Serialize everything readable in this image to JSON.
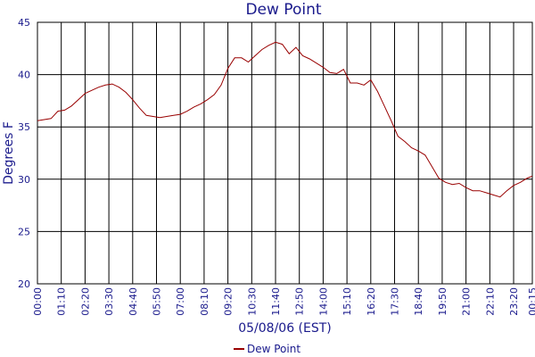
{
  "chart_data": {
    "type": "line",
    "title": "Dew Point",
    "xlabel": "05/08/06 (EST)",
    "ylabel": "Degrees F",
    "ylim": [
      20,
      45
    ],
    "yticks": [
      20,
      25,
      30,
      35,
      40,
      45
    ],
    "xlim": [
      "00:00",
      "24:15"
    ],
    "xticks": [
      "00:00",
      "01:10",
      "02:20",
      "03:30",
      "04:40",
      "05:50",
      "07:00",
      "08:10",
      "09:20",
      "10:30",
      "11:40",
      "12:50",
      "14:00",
      "15:10",
      "16:20",
      "17:30",
      "18:40",
      "19:50",
      "21:00",
      "22:10",
      "23:20",
      "00:15"
    ],
    "grid": true,
    "legend": "bottom-center",
    "series": [
      {
        "name": "Dew Point",
        "color": "#990000",
        "points": [
          [
            "00:00",
            35.6
          ],
          [
            "00:20",
            35.7
          ],
          [
            "00:40",
            35.8
          ],
          [
            "01:00",
            36.5
          ],
          [
            "01:20",
            36.6
          ],
          [
            "01:40",
            37.0
          ],
          [
            "02:00",
            37.6
          ],
          [
            "02:20",
            38.2
          ],
          [
            "02:40",
            38.5
          ],
          [
            "03:00",
            38.8
          ],
          [
            "03:20",
            39.0
          ],
          [
            "03:40",
            39.1
          ],
          [
            "04:00",
            38.8
          ],
          [
            "04:20",
            38.3
          ],
          [
            "04:40",
            37.6
          ],
          [
            "05:00",
            36.8
          ],
          [
            "05:20",
            36.1
          ],
          [
            "05:40",
            36.0
          ],
          [
            "06:00",
            35.9
          ],
          [
            "06:20",
            36.0
          ],
          [
            "06:40",
            36.1
          ],
          [
            "07:00",
            36.2
          ],
          [
            "07:20",
            36.5
          ],
          [
            "07:40",
            36.9
          ],
          [
            "08:00",
            37.2
          ],
          [
            "08:20",
            37.6
          ],
          [
            "08:40",
            38.1
          ],
          [
            "09:00",
            39.0
          ],
          [
            "09:20",
            40.6
          ],
          [
            "09:40",
            41.6
          ],
          [
            "10:00",
            41.6
          ],
          [
            "10:20",
            41.2
          ],
          [
            "10:40",
            41.8
          ],
          [
            "11:00",
            42.4
          ],
          [
            "11:20",
            42.8
          ],
          [
            "11:40",
            43.1
          ],
          [
            "12:00",
            42.9
          ],
          [
            "12:20",
            42.0
          ],
          [
            "12:40",
            42.6
          ],
          [
            "13:00",
            41.8
          ],
          [
            "13:20",
            41.5
          ],
          [
            "13:40",
            41.1
          ],
          [
            "14:00",
            40.7
          ],
          [
            "14:20",
            40.2
          ],
          [
            "14:40",
            40.1
          ],
          [
            "15:00",
            40.5
          ],
          [
            "15:20",
            39.2
          ],
          [
            "15:40",
            39.2
          ],
          [
            "16:00",
            39.0
          ],
          [
            "16:20",
            39.5
          ],
          [
            "16:40",
            38.4
          ],
          [
            "17:00",
            37.0
          ],
          [
            "17:20",
            35.6
          ],
          [
            "17:40",
            34.1
          ],
          [
            "18:00",
            33.6
          ],
          [
            "18:20",
            33.0
          ],
          [
            "18:40",
            32.7
          ],
          [
            "19:00",
            32.3
          ],
          [
            "19:20",
            31.2
          ],
          [
            "19:40",
            30.1
          ],
          [
            "20:00",
            29.7
          ],
          [
            "20:20",
            29.5
          ],
          [
            "20:40",
            29.6
          ],
          [
            "21:00",
            29.2
          ],
          [
            "21:20",
            28.9
          ],
          [
            "21:40",
            28.9
          ],
          [
            "22:00",
            28.7
          ],
          [
            "22:20",
            28.5
          ],
          [
            "22:40",
            28.3
          ],
          [
            "23:00",
            28.9
          ],
          [
            "23:20",
            29.4
          ],
          [
            "23:40",
            29.7
          ],
          [
            "24:00",
            30.1
          ],
          [
            "24:15",
            30.3
          ]
        ]
      }
    ]
  }
}
